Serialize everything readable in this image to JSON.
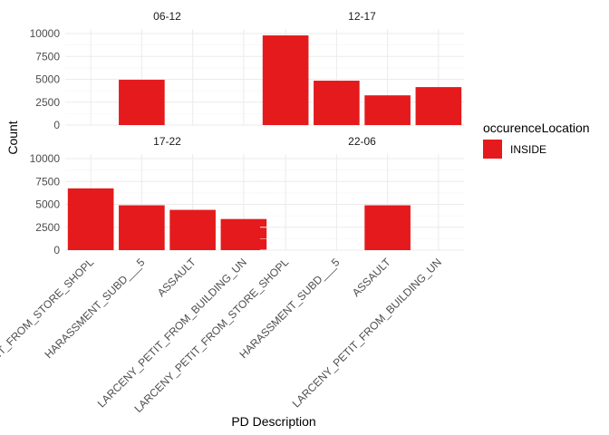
{
  "chart_data": {
    "type": "bar",
    "xlabel": "PD Description",
    "ylabel": "Count",
    "ylim": [
      0,
      10500
    ],
    "yticks": [
      0,
      2500,
      5000,
      7500,
      10000
    ],
    "y_tick_labels": [
      "0",
      "2500",
      "5000",
      "7500",
      "10000"
    ],
    "categories": [
      "LARCENY_PETIT_FROM_STORE_SHOPL",
      "HARASSMENT_SUBD___5",
      "ASSAULT",
      "LARCENY_PETIT_FROM_BUILDING_UN"
    ],
    "category_labels": [
      "LARCENY_PETIT_FROM_STORE_SHOPL",
      "HARASSMENT_SUBD___5",
      "ASSAULT",
      "LARCENY_PETIT_FROM_BUILDING_UN"
    ],
    "grid": true,
    "legend": {
      "title": "occurenceLocation",
      "position": "right",
      "entries": [
        {
          "label": "INSIDE",
          "color": "#e41a1c"
        }
      ]
    },
    "facets": [
      {
        "label": "06-12",
        "values": [
          null,
          4950,
          null,
          null
        ]
      },
      {
        "label": "12-17",
        "values": [
          9800,
          4850,
          3250,
          4150
        ]
      },
      {
        "label": "17-22",
        "values": [
          6750,
          4900,
          4400,
          3400
        ]
      },
      {
        "label": "22-06",
        "values": [
          null,
          null,
          4900,
          null
        ]
      }
    ],
    "bar_color": "#e41a1c"
  }
}
